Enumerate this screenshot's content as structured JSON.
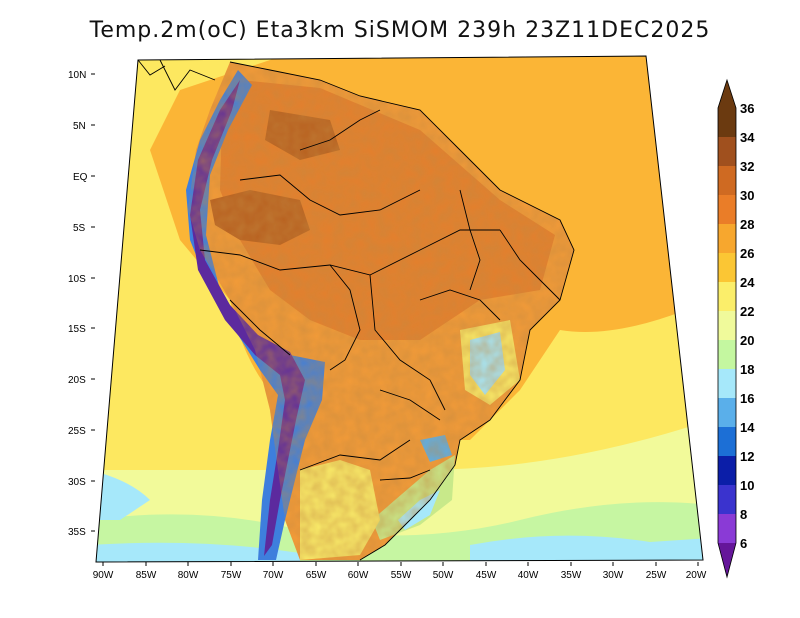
{
  "title": "Temp.2m(oC) Eta3km SiSMOM 239h 23Z11DEC2025",
  "lat_labels": [
    "10N",
    "5N",
    "EQ",
    "5S",
    "10S",
    "15S",
    "20S",
    "25S",
    "30S",
    "35S"
  ],
  "lon_labels": [
    "90W",
    "85W",
    "80W",
    "75W",
    "70W",
    "65W",
    "60W",
    "55W",
    "50W",
    "45W",
    "40W",
    "35W",
    "30W",
    "25W",
    "20W"
  ],
  "colorbar": {
    "labels": [
      "36",
      "34",
      "32",
      "30",
      "28",
      "26",
      "24",
      "22",
      "20",
      "18",
      "16",
      "14",
      "12",
      "10",
      "8",
      "6"
    ],
    "colors": [
      "#6b3a10",
      "#a0501e",
      "#cf6a22",
      "#ea7d28",
      "#f7a72e",
      "#fbc634",
      "#fbee6a",
      "#f0fa9b",
      "#c4f7a0",
      "#a6e8fa",
      "#5aafea",
      "#1c6fd6",
      "#0b1ea8",
      "#3a33ce",
      "#8a3ad6",
      "#65169a"
    ]
  },
  "palette": {
    "ocean_warm": "#fbb536",
    "ocean_mid": "#fde860",
    "ocean_cool": "#f2fa9a",
    "ocean_cold": "#c6f6a2",
    "land_hot": "#f39b38",
    "land_core": "#e57f2c",
    "land_hottest": "#b8601f",
    "andes_cold": "#5c2a9e",
    "andes_blue": "#3e7fdd"
  }
}
